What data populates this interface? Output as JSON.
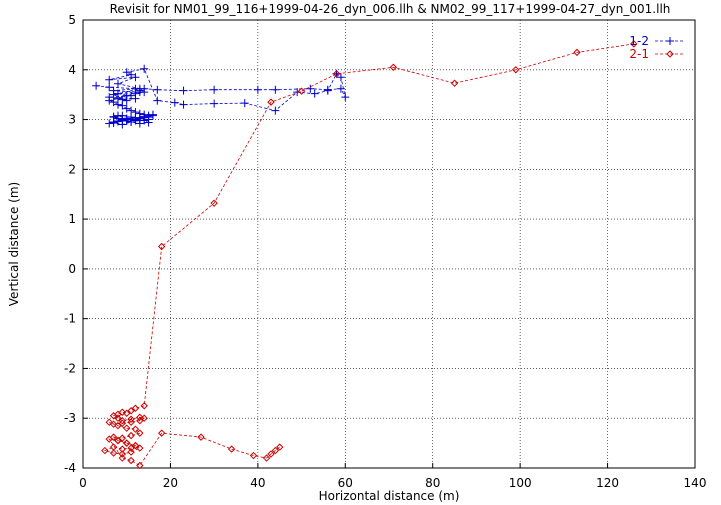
{
  "chart_data": {
    "type": "line",
    "title": "Revisit for NM01_99_116+1999-04-26_dyn_006.llh & NM02_99_117+1999-04-27_dyn_001.llh",
    "xlabel": "Horizontal distance (m)",
    "ylabel": "Vertical distance (m)",
    "xlim": [
      0,
      140
    ],
    "ylim": [
      -4,
      5
    ],
    "xticks": [
      0,
      20,
      40,
      60,
      80,
      100,
      120,
      140
    ],
    "yticks": [
      -4,
      -3,
      -2,
      -1,
      0,
      1,
      2,
      3,
      4,
      5
    ],
    "grid": true,
    "legend_position": "top-right",
    "series": [
      {
        "name": "1-2",
        "color": "#0000cc",
        "marker": "plus",
        "x": [
          3,
          6,
          12,
          7,
          13,
          8,
          11,
          6,
          12,
          9,
          10,
          7,
          13,
          8,
          12,
          6,
          11,
          10,
          14,
          17,
          21,
          23,
          30,
          37,
          44,
          49,
          53,
          56,
          58,
          59,
          60,
          59,
          56,
          52,
          44,
          40,
          30,
          23,
          17,
          14,
          13,
          14,
          12,
          10,
          8,
          6,
          7,
          8,
          9,
          10,
          11,
          12,
          13,
          14,
          15,
          16,
          15,
          13,
          11,
          9,
          7,
          6,
          8,
          10,
          12,
          14,
          16,
          14,
          12,
          10,
          8,
          7,
          9,
          11,
          13,
          15,
          13,
          11,
          9,
          7,
          8,
          10,
          12,
          14,
          15,
          13,
          11,
          9,
          7,
          8,
          10,
          12
        ],
        "y": [
          3.68,
          3.65,
          3.62,
          3.58,
          3.55,
          3.52,
          3.48,
          3.45,
          3.42,
          3.4,
          3.38,
          3.5,
          3.62,
          3.72,
          3.85,
          3.8,
          3.9,
          3.95,
          4.02,
          3.38,
          3.34,
          3.3,
          3.32,
          3.33,
          3.18,
          3.55,
          3.52,
          3.58,
          3.92,
          3.85,
          3.45,
          3.62,
          3.6,
          3.62,
          3.6,
          3.6,
          3.6,
          3.58,
          3.6,
          3.62,
          3.58,
          3.55,
          3.52,
          3.48,
          3.42,
          3.38,
          3.35,
          3.3,
          3.28,
          3.22,
          3.18,
          3.15,
          3.12,
          3.1,
          3.08,
          3.1,
          3.05,
          3.02,
          3.0,
          2.98,
          2.95,
          2.92,
          2.96,
          3.0,
          3.04,
          3.06,
          3.08,
          3.04,
          3.0,
          2.97,
          3.02,
          3.06,
          3.08,
          3.05,
          3.02,
          3.0,
          2.98,
          2.95,
          2.9,
          2.93,
          2.97,
          3.0,
          3.03,
          2.98,
          2.94,
          2.92,
          2.95,
          3.0,
          3.05,
          3.08,
          3.02,
          2.98
        ]
      },
      {
        "name": "2-1",
        "color": "#cc0000",
        "marker": "diamond",
        "x": [
          126,
          113,
          99,
          85,
          71,
          58,
          50,
          43,
          30,
          18,
          14,
          12,
          11,
          10,
          9,
          8,
          7,
          8,
          9,
          11,
          13,
          14,
          13,
          11,
          9,
          7,
          6,
          8,
          10,
          12,
          13,
          11,
          9,
          7,
          8,
          10,
          12,
          11,
          9,
          7,
          5,
          7,
          9,
          11,
          13,
          12,
          10,
          8,
          6,
          9,
          11,
          13,
          18,
          27,
          34,
          39,
          42,
          43,
          44,
          45
        ],
        "y": [
          4.52,
          4.35,
          4.0,
          3.73,
          4.05,
          3.92,
          3.57,
          3.35,
          1.32,
          0.45,
          -2.75,
          -2.8,
          -2.85,
          -2.9,
          -2.88,
          -2.92,
          -2.95,
          -3.0,
          -3.05,
          -3.02,
          -2.98,
          -3.0,
          -3.05,
          -3.08,
          -3.1,
          -3.12,
          -3.08,
          -3.15,
          -3.2,
          -3.22,
          -3.3,
          -3.35,
          -3.4,
          -3.38,
          -3.45,
          -3.5,
          -3.55,
          -3.6,
          -3.62,
          -3.58,
          -3.65,
          -3.7,
          -3.72,
          -3.68,
          -3.6,
          -3.55,
          -3.5,
          -3.45,
          -3.42,
          -3.8,
          -3.85,
          -3.95,
          -3.3,
          -3.38,
          -3.62,
          -3.75,
          -3.8,
          -3.72,
          -3.65,
          -3.58
        ]
      }
    ]
  }
}
